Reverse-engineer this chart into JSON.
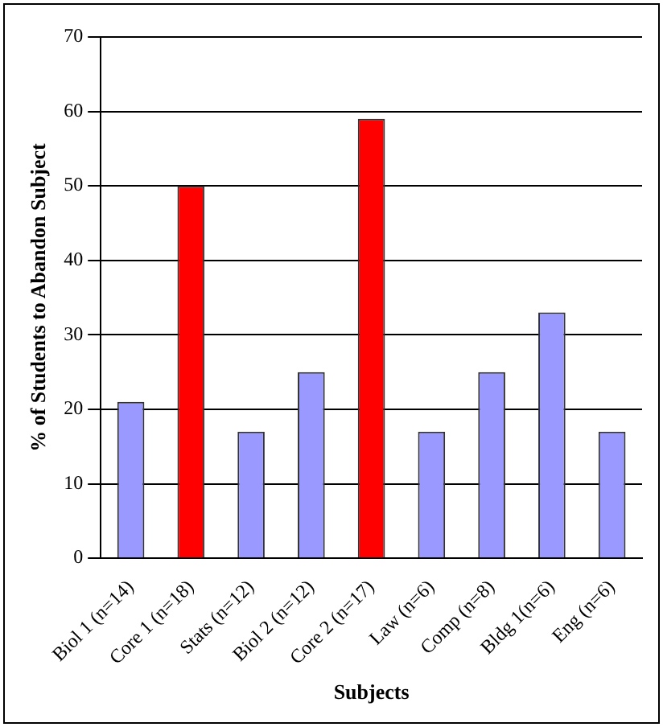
{
  "chart_data": {
    "type": "bar",
    "xlabel": "Subjects",
    "ylabel": "% of Students to Abandon Subject",
    "categories": [
      "Biol 1 (n=14)",
      "Core 1 (n=18)",
      "Stats (n=12)",
      "Biol 2 (n=12)",
      "Core 2 (n=17)",
      "Law (n=6)",
      "Comp (n=8)",
      "Bldg 1(n=6)",
      "Eng (n=6)"
    ],
    "values": [
      21,
      50,
      17,
      25,
      59,
      17,
      25,
      33,
      17
    ],
    "colors": [
      "#9999ff",
      "#ff0000",
      "#9999ff",
      "#9999ff",
      "#ff0000",
      "#9999ff",
      "#9999ff",
      "#9999ff",
      "#9999ff"
    ],
    "ylim": [
      0,
      70
    ],
    "yticks": [
      0,
      10,
      20,
      30,
      40,
      50,
      60,
      70
    ],
    "grid": "y"
  }
}
